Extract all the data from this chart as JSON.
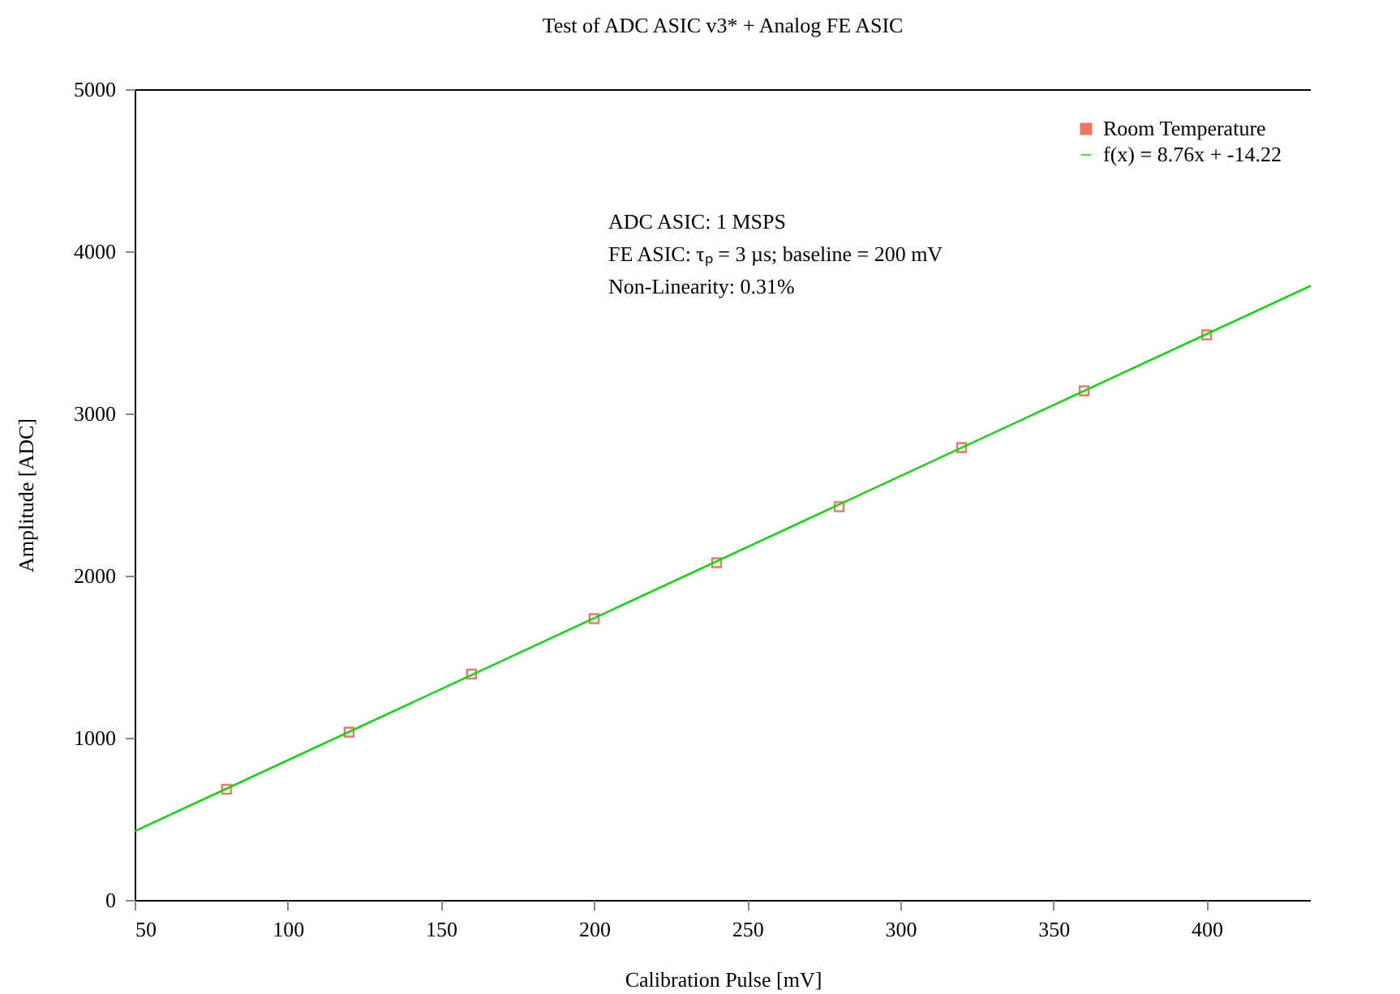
{
  "chart_data": {
    "type": "scatter",
    "title": "Test of ADC ASIC v3* + Analog FE ASIC",
    "xlabel": "Calibration Pulse [mV]",
    "ylabel": "Amplitude [ADC]",
    "xlim": [
      50,
      434
    ],
    "xticks": [
      50,
      100,
      150,
      200,
      250,
      300,
      350,
      400
    ],
    "ylim": [
      0,
      5000
    ],
    "yticks": [
      0,
      1000,
      2000,
      3000,
      4000,
      5000
    ],
    "grid": false,
    "legend": "top right",
    "annotations": [
      "ADC ASIC: 1 MSPS",
      "FE ASIC: τₚ = 3 µs; baseline = 200 mV",
      "Non-Linearity: 0.31%"
    ],
    "series": [
      {
        "name": "Room Temperature",
        "marker": "square",
        "color": "#e8401c",
        "x": [
          80,
          120,
          160,
          200,
          240,
          280,
          320,
          360,
          400
        ],
        "values": [
          683,
          1035,
          1393,
          1735,
          2080,
          2425,
          2790,
          3140,
          3485
        ]
      },
      {
        "name": "f(x) = 8.76x + -14.22",
        "type": "line",
        "marker": "none",
        "color": "#00dd00",
        "x": [
          50,
          434
        ],
        "values": [
          424,
          3788
        ]
      }
    ]
  }
}
